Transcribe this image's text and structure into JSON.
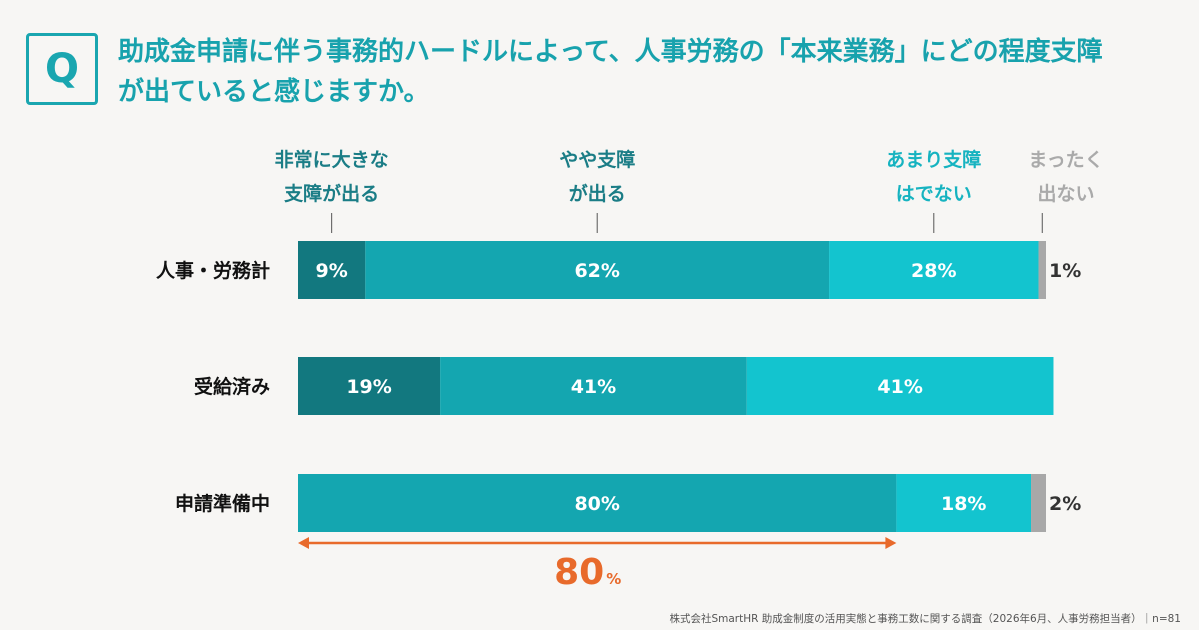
{
  "header": {
    "q_mark": "Q",
    "question_line1": "助成金申請に伴う事務的ハードルによって、人事労務の「本来業務」にどの程度支障",
    "question_line2": "が出ていると感じますか。"
  },
  "chart_data": {
    "type": "bar",
    "orientation": "horizontal-stacked-100",
    "series": [
      {
        "name": "非常に大きな支障が出る",
        "name_lines": [
          "非常に大きな",
          "支障が出る"
        ],
        "color": "#12787f"
      },
      {
        "name": "やや支障が出る",
        "name_lines": [
          "やや支障",
          "が出る"
        ],
        "color": "#14a6b0"
      },
      {
        "name": "あまり支障はでない",
        "name_lines": [
          "あまり支障",
          "はでない"
        ],
        "color": "#13c4cf"
      },
      {
        "name": "まったく出ない",
        "name_lines": [
          "まったく",
          "出ない"
        ],
        "color": "#a8a8a8"
      }
    ],
    "categories": [
      "人事・労務計",
      "受給済み",
      "申請準備中"
    ],
    "values": [
      [
        9,
        62,
        28,
        1
      ],
      [
        19,
        41,
        41,
        0
      ],
      [
        0,
        80,
        18,
        2
      ]
    ],
    "value_labels": [
      [
        "9%",
        "62%",
        "28%",
        "1%"
      ],
      [
        "19%",
        "41%",
        "41%",
        ""
      ],
      [
        "",
        "80%",
        "18%",
        "2%"
      ]
    ],
    "legend_colors": [
      "#1b7d86",
      "#1b7d86",
      "#16b3c0",
      "#aaaaaa"
    ],
    "annotation": {
      "category": "申請準備中",
      "span": [
        0,
        80
      ],
      "value": "80",
      "unit": "%",
      "color": "#e86a2b"
    }
  },
  "footer": {
    "source": "株式会社SmartHR 助成金制度の活用実態と事務工数に関する調査（2026年6月、人事労務担当者）｜n=81"
  }
}
